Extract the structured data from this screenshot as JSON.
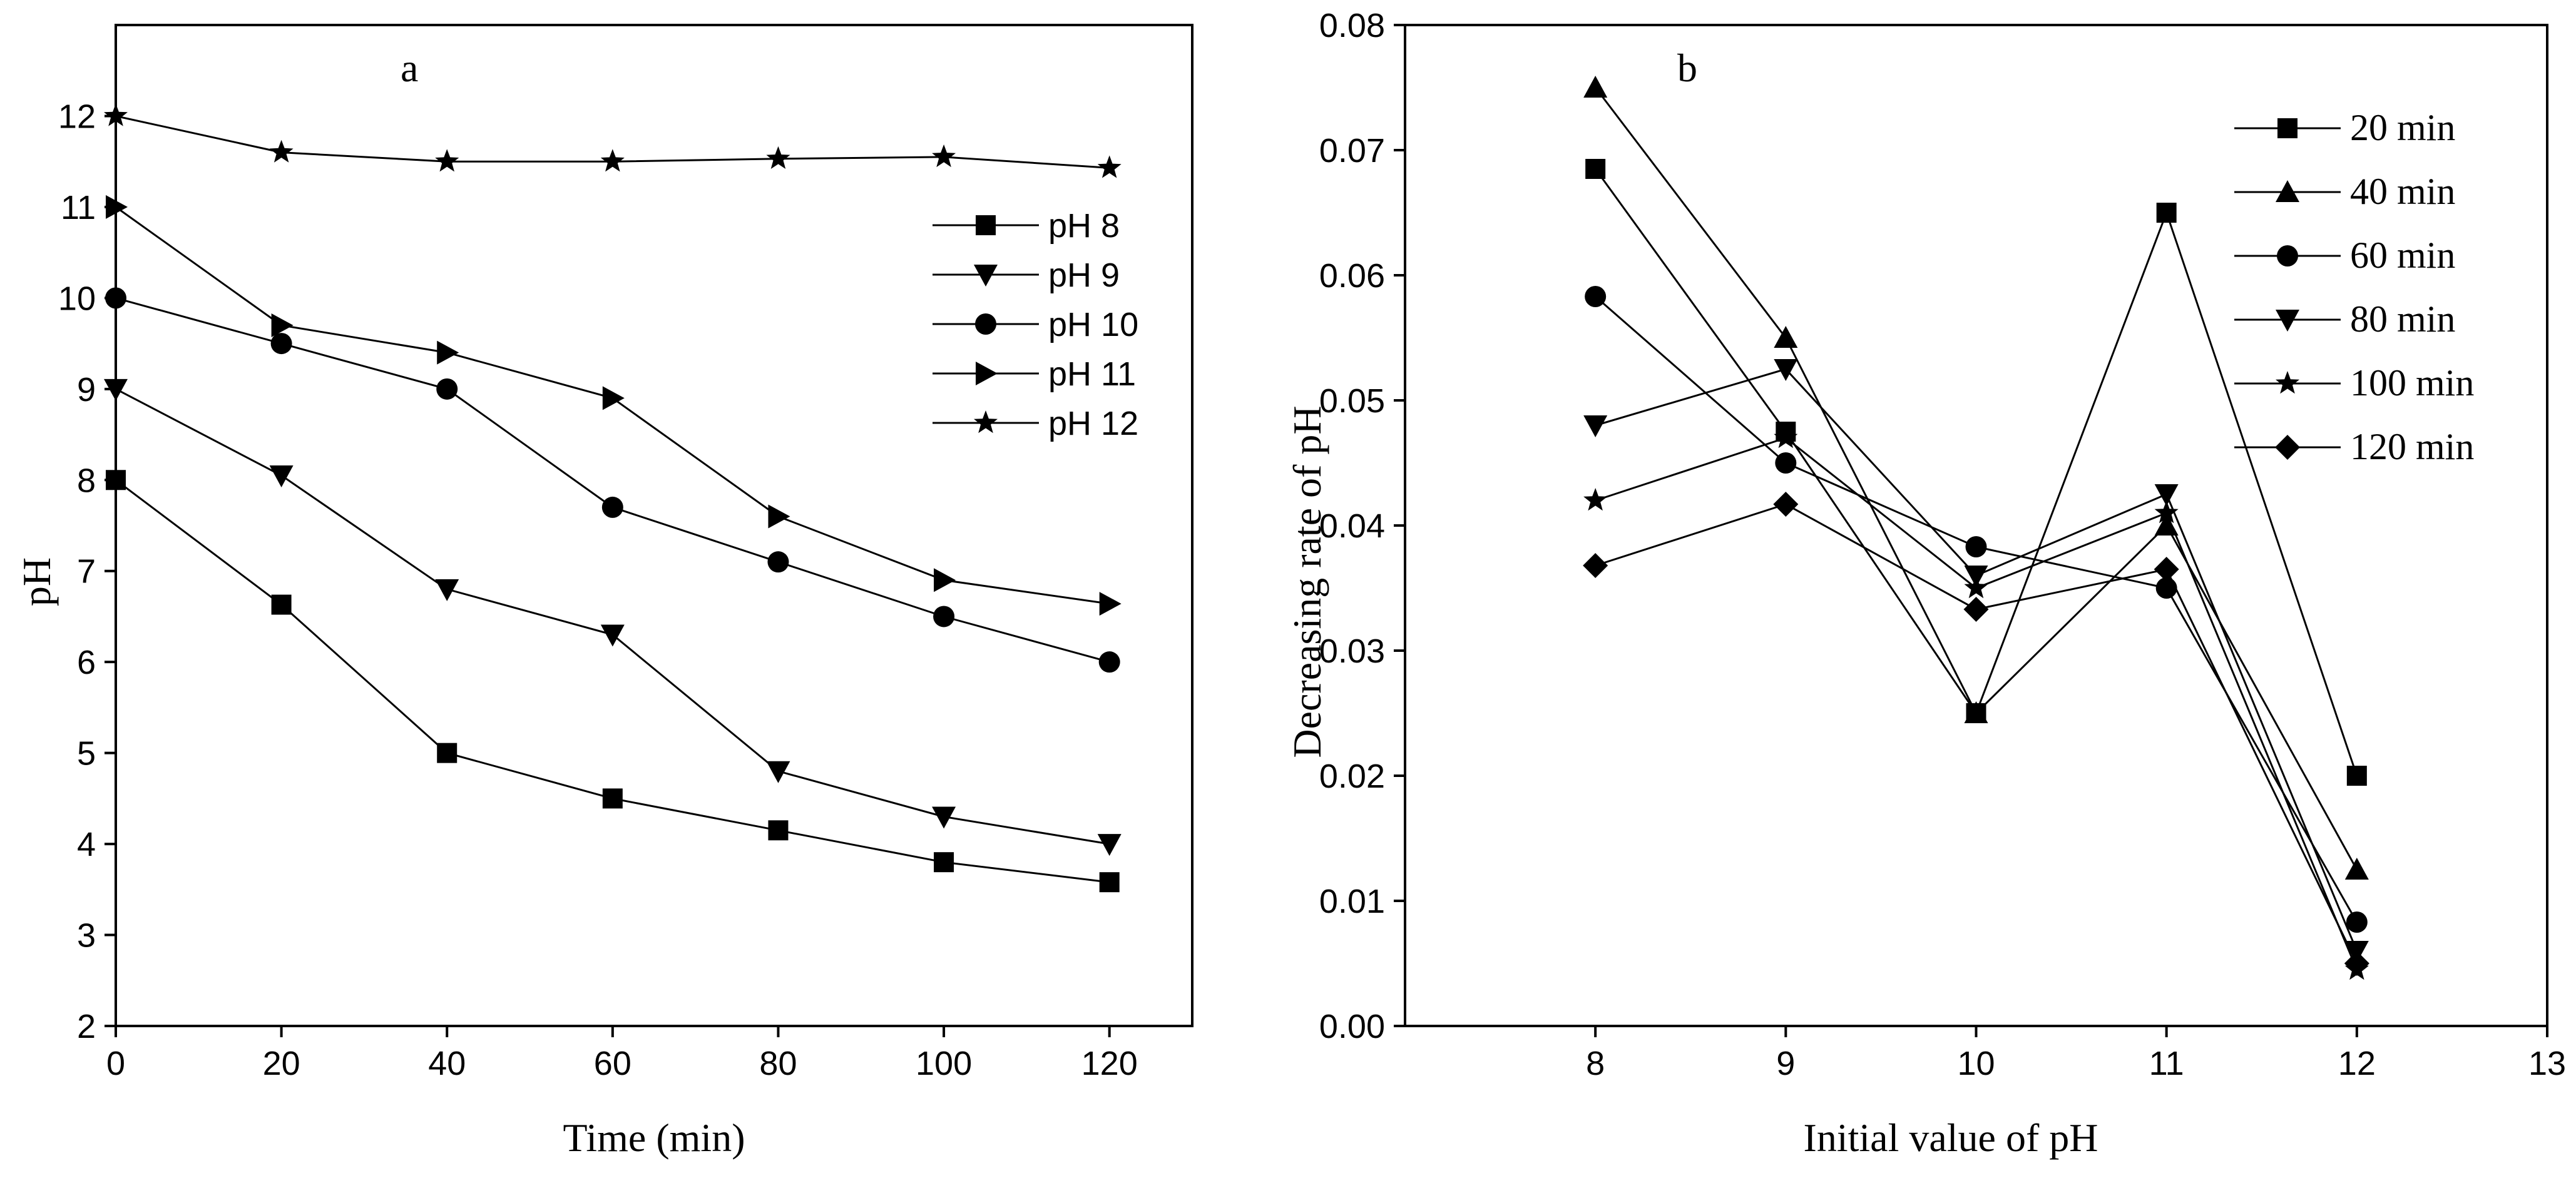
{
  "chart_data": [
    {
      "type": "line",
      "panel_label": "a",
      "title": "",
      "xlabel": "Time (min)",
      "ylabel": "pH",
      "xlim": [
        0,
        130
      ],
      "ylim": [
        2,
        13
      ],
      "xticks": [
        0,
        20,
        40,
        60,
        80,
        100,
        120
      ],
      "yticks": [
        2,
        3,
        4,
        5,
        6,
        7,
        8,
        9,
        10,
        11,
        12
      ],
      "grid": false,
      "legend_position": "right",
      "x": [
        0,
        20,
        40,
        60,
        80,
        100,
        120
      ],
      "series": [
        {
          "name": "pH 8",
          "marker": "square",
          "values": [
            8.0,
            6.63,
            5.0,
            4.5,
            4.15,
            3.8,
            3.58
          ]
        },
        {
          "name": "pH 9",
          "marker": "triangle-down",
          "values": [
            9.0,
            8.05,
            6.8,
            6.3,
            4.8,
            4.3,
            4.0
          ]
        },
        {
          "name": "pH 10",
          "marker": "circle",
          "values": [
            10.0,
            9.5,
            9.0,
            7.7,
            7.1,
            6.5,
            6.0
          ]
        },
        {
          "name": "pH 11",
          "marker": "triangle-right",
          "values": [
            11.0,
            9.7,
            9.4,
            8.9,
            7.6,
            6.9,
            6.64
          ]
        },
        {
          "name": "pH 12",
          "marker": "star",
          "values": [
            12.0,
            11.6,
            11.5,
            11.5,
            11.53,
            11.55,
            11.43
          ]
        }
      ]
    },
    {
      "type": "line",
      "panel_label": "b",
      "title": "",
      "xlabel": "Initial value of pH",
      "ylabel": "Decreasing rate of pH",
      "xlim": [
        7,
        13
      ],
      "ylim": [
        0,
        0.08
      ],
      "xticks": [
        8,
        9,
        10,
        11,
        12,
        13
      ],
      "yticks": [
        "0.00",
        "0.01",
        "0.02",
        "0.03",
        "0.04",
        "0.05",
        "0.06",
        "0.07",
        "0.08"
      ],
      "grid": false,
      "legend_position": "top-right",
      "x": [
        8,
        9,
        10,
        11,
        12
      ],
      "series": [
        {
          "name": "20 min",
          "marker": "square",
          "values": [
            0.0685,
            0.0475,
            0.025,
            0.065,
            0.02
          ]
        },
        {
          "name": "40 min",
          "marker": "triangle-up",
          "values": [
            0.075,
            0.055,
            0.025,
            0.04,
            0.0125
          ]
        },
        {
          "name": "60 min",
          "marker": "circle",
          "values": [
            0.0583,
            0.045,
            0.0383,
            0.035,
            0.0083
          ]
        },
        {
          "name": "80 min",
          "marker": "triangle-down",
          "values": [
            0.048,
            0.0525,
            0.036,
            0.0425,
            0.006
          ]
        },
        {
          "name": "100 min",
          "marker": "star",
          "values": [
            0.042,
            0.047,
            0.035,
            0.041,
            0.0045
          ]
        },
        {
          "name": "120 min",
          "marker": "diamond",
          "values": [
            0.0368,
            0.0417,
            0.0333,
            0.0365,
            0.005
          ]
        }
      ]
    }
  ]
}
